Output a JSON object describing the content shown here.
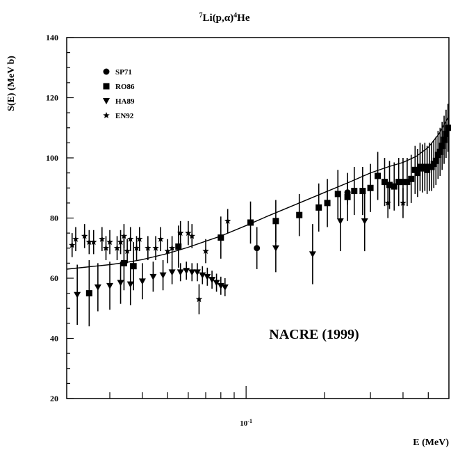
{
  "chart_data": {
    "type": "scatter",
    "title": "7Li(p,α)4He",
    "title_parts": {
      "sup1": "7",
      "main1": "Li(p,",
      "greek": "α",
      "main2": ")",
      "sup2": "4",
      "main3": "He"
    },
    "xlabel": "E (MeV)",
    "ylabel": "S(E) (MeV b)",
    "x_scale": "log",
    "xlim": [
      0.0205,
      0.6
    ],
    "ylim": [
      20,
      140
    ],
    "y_ticks": [
      20,
      40,
      60,
      80,
      100,
      120,
      140
    ],
    "y_tick_labels": [
      "20",
      "40",
      "60",
      "80",
      "100",
      "120",
      "140"
    ],
    "x_tick_label": {
      "value": 0.1,
      "base": "10",
      "exp": "-1"
    },
    "grid": false,
    "legend_position": "top-left",
    "annotation": "NACRE (1999)",
    "series": [
      {
        "name": "SP71",
        "marker": "circle",
        "points": [
          {
            "x": 0.11,
            "y": 70,
            "dy": 7
          },
          {
            "x": 0.245,
            "y": 88.5,
            "dy": 4
          }
        ]
      },
      {
        "name": "RO86",
        "marker": "square",
        "points": [
          {
            "x": 0.025,
            "y": 55,
            "dy": 11
          },
          {
            "x": 0.034,
            "y": 65,
            "dy": 9
          },
          {
            "x": 0.037,
            "y": 64,
            "dy": 8
          },
          {
            "x": 0.055,
            "y": 70.5,
            "dy": 7
          },
          {
            "x": 0.08,
            "y": 73.5,
            "dy": 7
          },
          {
            "x": 0.104,
            "y": 78.5,
            "dy": 7
          },
          {
            "x": 0.13,
            "y": 79,
            "dy": 7
          },
          {
            "x": 0.16,
            "y": 81,
            "dy": 7
          },
          {
            "x": 0.19,
            "y": 83.5,
            "dy": 8
          },
          {
            "x": 0.205,
            "y": 85,
            "dy": 8
          },
          {
            "x": 0.225,
            "y": 88,
            "dy": 8
          },
          {
            "x": 0.245,
            "y": 87,
            "dy": 8
          },
          {
            "x": 0.26,
            "y": 89,
            "dy": 8
          },
          {
            "x": 0.28,
            "y": 89,
            "dy": 8
          },
          {
            "x": 0.3,
            "y": 90,
            "dy": 8
          },
          {
            "x": 0.32,
            "y": 94,
            "dy": 8
          },
          {
            "x": 0.34,
            "y": 92,
            "dy": 8
          },
          {
            "x": 0.355,
            "y": 91,
            "dy": 8
          },
          {
            "x": 0.37,
            "y": 90.5,
            "dy": 8
          },
          {
            "x": 0.385,
            "y": 92,
            "dy": 8
          },
          {
            "x": 0.4,
            "y": 92,
            "dy": 8
          },
          {
            "x": 0.415,
            "y": 92,
            "dy": 8
          },
          {
            "x": 0.43,
            "y": 93,
            "dy": 8
          },
          {
            "x": 0.445,
            "y": 96,
            "dy": 8
          },
          {
            "x": 0.455,
            "y": 95,
            "dy": 8
          },
          {
            "x": 0.465,
            "y": 97,
            "dy": 8
          },
          {
            "x": 0.475,
            "y": 96.5,
            "dy": 8
          },
          {
            "x": 0.485,
            "y": 97,
            "dy": 8
          },
          {
            "x": 0.495,
            "y": 96,
            "dy": 8
          },
          {
            "x": 0.505,
            "y": 97,
            "dy": 8
          },
          {
            "x": 0.515,
            "y": 97,
            "dy": 8
          },
          {
            "x": 0.525,
            "y": 98,
            "dy": 8
          },
          {
            "x": 0.535,
            "y": 99,
            "dy": 8
          },
          {
            "x": 0.545,
            "y": 101,
            "dy": 8
          },
          {
            "x": 0.555,
            "y": 102,
            "dy": 8
          },
          {
            "x": 0.565,
            "y": 104,
            "dy": 8
          },
          {
            "x": 0.575,
            "y": 106,
            "dy": 8
          },
          {
            "x": 0.585,
            "y": 108,
            "dy": 8
          },
          {
            "x": 0.595,
            "y": 110,
            "dy": 8
          }
        ]
      },
      {
        "name": "HA89",
        "marker": "triangle-down",
        "points": [
          {
            "x": 0.0225,
            "y": 54.5,
            "dy": 10
          },
          {
            "x": 0.027,
            "y": 57,
            "dy": 8
          },
          {
            "x": 0.03,
            "y": 57.5,
            "dy": 8
          },
          {
            "x": 0.033,
            "y": 58.5,
            "dy": 7
          },
          {
            "x": 0.036,
            "y": 58,
            "dy": 7
          },
          {
            "x": 0.04,
            "y": 59,
            "dy": 6
          },
          {
            "x": 0.044,
            "y": 60.5,
            "dy": 5
          },
          {
            "x": 0.048,
            "y": 61,
            "dy": 5
          },
          {
            "x": 0.052,
            "y": 62,
            "dy": 4
          },
          {
            "x": 0.056,
            "y": 62,
            "dy": 3
          },
          {
            "x": 0.059,
            "y": 62.5,
            "dy": 3
          },
          {
            "x": 0.062,
            "y": 62,
            "dy": 3
          },
          {
            "x": 0.065,
            "y": 62,
            "dy": 3
          },
          {
            "x": 0.068,
            "y": 61,
            "dy": 3
          },
          {
            "x": 0.071,
            "y": 60.5,
            "dy": 3
          },
          {
            "x": 0.074,
            "y": 59.5,
            "dy": 3
          },
          {
            "x": 0.077,
            "y": 58.5,
            "dy": 3
          },
          {
            "x": 0.08,
            "y": 57.5,
            "dy": 3
          },
          {
            "x": 0.083,
            "y": 57,
            "dy": 3
          },
          {
            "x": 0.13,
            "y": 70,
            "dy": 8
          },
          {
            "x": 0.18,
            "y": 68,
            "dy": 10
          },
          {
            "x": 0.23,
            "y": 79,
            "dy": 10
          },
          {
            "x": 0.285,
            "y": 79,
            "dy": 10
          }
        ]
      },
      {
        "name": "EN92",
        "marker": "star",
        "points": [
          {
            "x": 0.0215,
            "y": 71,
            "dy": 4
          },
          {
            "x": 0.0222,
            "y": 73,
            "dy": 4
          },
          {
            "x": 0.024,
            "y": 74,
            "dy": 4
          },
          {
            "x": 0.025,
            "y": 72,
            "dy": 4
          },
          {
            "x": 0.026,
            "y": 72,
            "dy": 4
          },
          {
            "x": 0.028,
            "y": 73,
            "dy": 4
          },
          {
            "x": 0.029,
            "y": 70,
            "dy": 4
          },
          {
            "x": 0.03,
            "y": 72,
            "dy": 4
          },
          {
            "x": 0.032,
            "y": 70,
            "dy": 4
          },
          {
            "x": 0.033,
            "y": 72,
            "dy": 4
          },
          {
            "x": 0.034,
            "y": 74,
            "dy": 4
          },
          {
            "x": 0.035,
            "y": 69,
            "dy": 4
          },
          {
            "x": 0.036,
            "y": 73,
            "dy": 4
          },
          {
            "x": 0.038,
            "y": 70,
            "dy": 4
          },
          {
            "x": 0.039,
            "y": 73,
            "dy": 4
          },
          {
            "x": 0.042,
            "y": 70,
            "dy": 4
          },
          {
            "x": 0.045,
            "y": 70,
            "dy": 4
          },
          {
            "x": 0.047,
            "y": 73,
            "dy": 4
          },
          {
            "x": 0.05,
            "y": 69,
            "dy": 4
          },
          {
            "x": 0.052,
            "y": 70,
            "dy": 4
          },
          {
            "x": 0.056,
            "y": 75,
            "dy": 4
          },
          {
            "x": 0.06,
            "y": 75,
            "dy": 4
          },
          {
            "x": 0.062,
            "y": 74,
            "dy": 4
          },
          {
            "x": 0.066,
            "y": 53,
            "dy": 5
          },
          {
            "x": 0.07,
            "y": 69,
            "dy": 4
          },
          {
            "x": 0.085,
            "y": 79,
            "dy": 4
          },
          {
            "x": 0.35,
            "y": 85,
            "dy": 5
          },
          {
            "x": 0.4,
            "y": 85,
            "dy": 5
          }
        ]
      }
    ],
    "fit_curve": {
      "x": [
        0.0205,
        0.025,
        0.03,
        0.035,
        0.04,
        0.05,
        0.06,
        0.07,
        0.08,
        0.1,
        0.12,
        0.15,
        0.2,
        0.25,
        0.3,
        0.35,
        0.4,
        0.45,
        0.5,
        0.55,
        0.6
      ],
      "y": [
        63,
        63.8,
        64.5,
        65.3,
        66.2,
        68.2,
        70.3,
        72.3,
        74,
        77.5,
        80.5,
        84,
        88.5,
        92,
        95,
        97,
        98.5,
        100.5,
        103.5,
        108,
        114
      ]
    }
  }
}
